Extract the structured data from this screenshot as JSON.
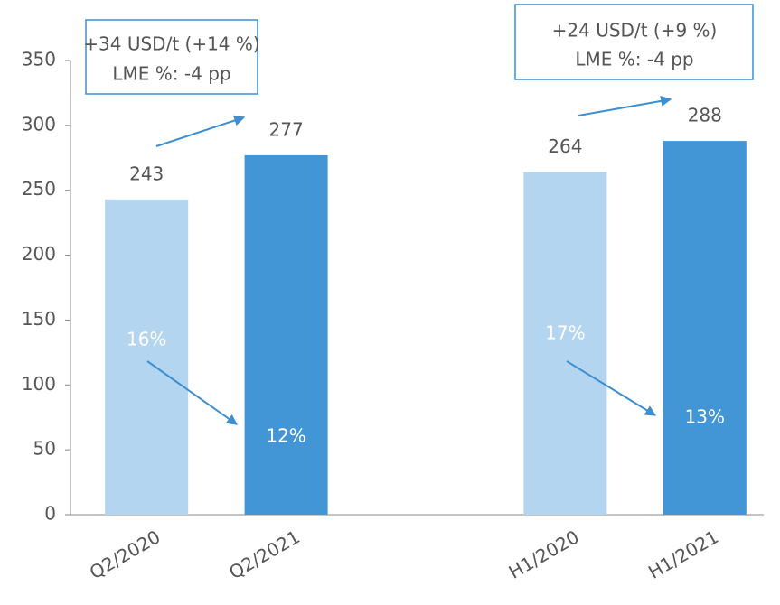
{
  "chart_data": {
    "type": "bar",
    "categories": [
      "Q2/2020",
      "Q2/2021",
      null,
      "H1/2020",
      "H1/2021"
    ],
    "values": [
      243,
      277,
      null,
      264,
      288
    ],
    "colors": [
      "#b4d5ef",
      "#4296d6",
      null,
      "#b4d5ef",
      "#4296d6"
    ],
    "bar_notes": [
      "16%",
      "12%",
      null,
      "17%",
      "13%"
    ],
    "callouts": [
      [
        "+34 USD/t (+14 %)",
        "LME %: -4 pp"
      ],
      [
        "+24 USD/t (+9 %)",
        "LME %: -4 pp"
      ]
    ],
    "ylim": [
      0,
      350
    ],
    "yticks": [
      0,
      50,
      100,
      150,
      200,
      250,
      300,
      350
    ],
    "grid": false
  }
}
